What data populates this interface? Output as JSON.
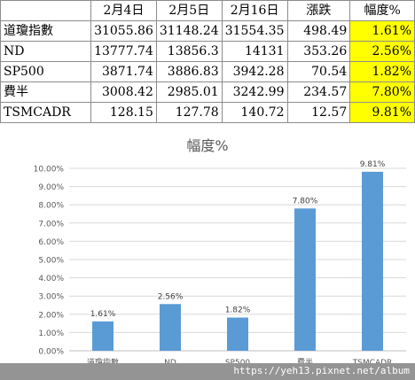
{
  "table": {
    "headers": [
      "",
      "2月4日",
      "2月5日",
      "2月16日",
      "漲跌",
      "幅度%"
    ],
    "rows": [
      [
        "道瓊指數",
        "31055.86",
        "31148.24",
        "31554.35",
        "498.49",
        "1.61%"
      ],
      [
        "ND",
        "13777.74",
        "13856.3",
        "14131",
        "353.26",
        "2.56%"
      ],
      [
        "SP500",
        "3871.74",
        "3886.83",
        "3942.28",
        "70.54",
        "1.82%"
      ],
      [
        "費半",
        "3008.42",
        "2985.01",
        "3242.99",
        "234.57",
        "7.80%"
      ],
      [
        "TSMCADR",
        "128.15",
        "127.78",
        "140.72",
        "12.57",
        "9.81%"
      ]
    ],
    "highlight_color": "#ffff00"
  },
  "chart_data": {
    "type": "bar",
    "title": "幅度%",
    "categories": [
      "道瓊指數",
      "ND",
      "SP500",
      "費半",
      "TSMCADR"
    ],
    "values": [
      1.61,
      2.56,
      1.82,
      7.8,
      9.81
    ],
    "data_labels": [
      "1.61%",
      "2.56%",
      "1.82%",
      "7.80%",
      "9.81%"
    ],
    "ylim": [
      0,
      10
    ],
    "yticks": [
      "0.00%",
      "1.00%",
      "2.00%",
      "3.00%",
      "4.00%",
      "5.00%",
      "6.00%",
      "7.00%",
      "8.00%",
      "9.00%",
      "10.00%"
    ],
    "grid": true,
    "bar_color": "#5b9bd5"
  },
  "watermark": "https://yeh13.pixnet.net/album"
}
